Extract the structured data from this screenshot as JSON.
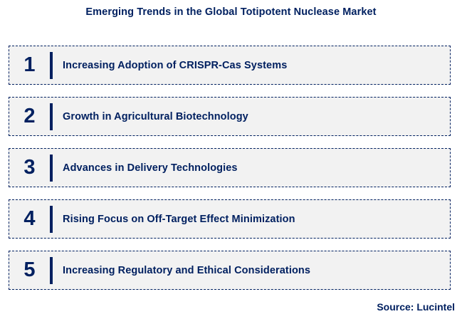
{
  "title": "Emerging Trends in the Global Totipotent Nuclease Market",
  "colors": {
    "navy": "#002060",
    "box_background": "#f2f2f2",
    "page_background": "#ffffff"
  },
  "trends": [
    {
      "number": "1",
      "label": "Increasing Adoption of CRISPR-Cas Systems"
    },
    {
      "number": "2",
      "label": "Growth in Agricultural Biotechnology"
    },
    {
      "number": "3",
      "label": "Advances in Delivery Technologies"
    },
    {
      "number": "4",
      "label": "Rising Focus on Off-Target Effect Minimization"
    },
    {
      "number": "5",
      "label": "Increasing Regulatory and Ethical Considerations"
    }
  ],
  "source": "Source: Lucintel"
}
